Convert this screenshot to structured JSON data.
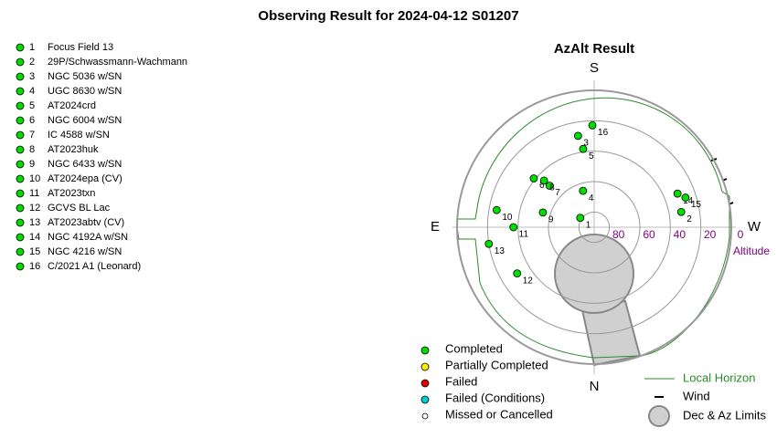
{
  "chart_data": {
    "type": "polar-scatter",
    "title": "Observing Result for 2024-04-12 S01207",
    "subtitle": "AzAlt Result",
    "directions": {
      "top": "S",
      "bottom": "N",
      "left": "E",
      "right": "W"
    },
    "r_label": "Altitude",
    "rlim": [
      90,
      0
    ],
    "rticks": [
      80,
      60,
      40,
      20,
      0
    ],
    "color": "#00dd00",
    "ids": [
      "1",
      "2",
      "3",
      "4",
      "5",
      "6",
      "7",
      "8",
      "9",
      "10",
      "11",
      "12",
      "13",
      "14",
      "15",
      "16"
    ],
    "names": [
      "Focus Field 13",
      "29P/Schwassmann-Wachmann",
      "NGC 5036 w/SN",
      "UGC 8630 w/SN",
      "AT2024crd",
      "NGC 6004 w/SN",
      "IC 4588 w/SN",
      "AT2023huk",
      "NGC 6433 w/SN",
      "AT2024epa (CV)",
      "AT2023txn",
      "GCVS BL Lac",
      "AT2023abtv (CV)",
      "NGC 4192A w/SN",
      "NGC 4216 w/SN",
      "C/2021 A1 (Leonard)"
    ],
    "az": [
      124,
      260,
      170,
      163,
      172,
      129,
      133,
      133,
      106,
      100,
      90,
      59,
      81,
      248,
      252,
      179
    ],
    "alt": [
      79,
      32,
      29,
      65,
      38,
      39,
      50,
      45,
      55,
      25,
      37,
      31,
      20,
      31,
      27,
      23
    ],
    "legend": {
      "status": [
        {
          "label": "Completed",
          "color": "#00dd00"
        },
        {
          "label": "Partially Completed",
          "color": "#ffee00"
        },
        {
          "label": "Failed",
          "color": "#dd0000"
        },
        {
          "label": "Failed (Conditions)",
          "color": "#00cccc"
        },
        {
          "label": "Missed or Cancelled",
          "color": "#ffffff"
        }
      ],
      "horizon": "Local Horizon",
      "wind": "Wind",
      "limits": "Dec & Az Limits"
    }
  }
}
